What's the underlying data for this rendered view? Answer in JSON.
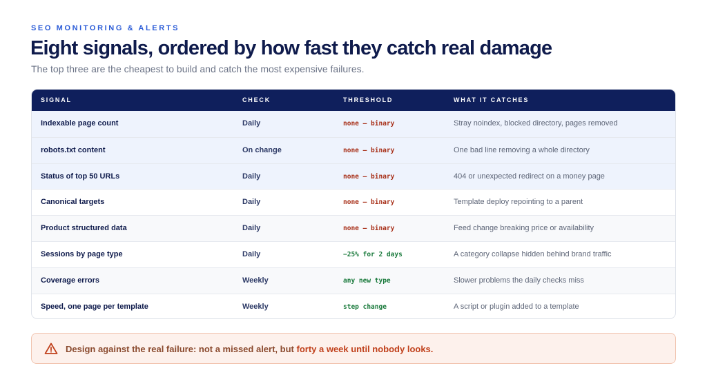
{
  "header": {
    "eyebrow": "SEO MONITORING & ALERTS",
    "title": "Eight signals, ordered by how fast they catch real damage",
    "subtitle": "The top three are the cheapest to build and catch the most expensive failures."
  },
  "table": {
    "columns": [
      "SIGNAL",
      "CHECK",
      "THRESHOLD",
      "WHAT IT CATCHES"
    ],
    "rows": [
      {
        "signal": "Indexable page count",
        "check": "Daily",
        "threshold": "none — binary",
        "catches": "Stray noindex, blocked directory, pages removed"
      },
      {
        "signal": "robots.txt content",
        "check": "On change",
        "threshold": "none — binary",
        "catches": "One bad line removing a whole directory"
      },
      {
        "signal": "Status of top 50 URLs",
        "check": "Daily",
        "threshold": "none — binary",
        "catches": "404 or unexpected redirect on a money page"
      },
      {
        "signal": "Canonical targets",
        "check": "Daily",
        "threshold": "none — binary",
        "catches": "Template deploy repointing to a parent"
      },
      {
        "signal": "Product structured data",
        "check": "Daily",
        "threshold": "none — binary",
        "catches": "Feed change breaking price or availability"
      },
      {
        "signal": "Sessions by page type",
        "check": "Daily",
        "threshold": "−25% for 2 days",
        "catches": "A category collapse hidden behind brand traffic"
      },
      {
        "signal": "Coverage errors",
        "check": "Weekly",
        "threshold": "any new type",
        "catches": "Slower problems the daily checks miss"
      },
      {
        "signal": "Speed, one page per template",
        "check": "Weekly",
        "threshold": "step change",
        "catches": "A script or plugin added to a template"
      }
    ]
  },
  "callout": {
    "icon": "warning-triangle-icon",
    "text_lead": "Design against the real failure: not a missed alert, but ",
    "text_strong": "forty a week until nobody looks."
  },
  "colors": {
    "header_bg": "#0f1f5c",
    "accent_blue": "#2a5bd7",
    "threshold_red": "#a8311a",
    "threshold_green": "#1a7a3c",
    "callout_bg": "#fdf1ec"
  }
}
